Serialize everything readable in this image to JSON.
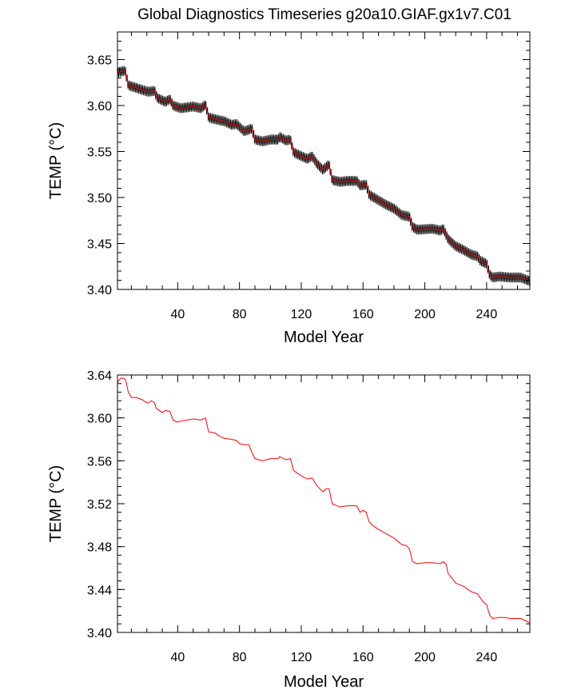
{
  "page_title": "Global Diagnostics Timeseries g20a10.GIAF.gx1v7.C01",
  "colors": {
    "monthly": "#000000",
    "annual": "#ff0000",
    "axis": "#000000",
    "background": "#ffffff"
  },
  "chart_data": [
    {
      "type": "line",
      "panel": "top",
      "title": "Global Diagnostics Timeseries g20a10.GIAF.gx1v7.C01",
      "xlabel": "Model Year",
      "ylabel": "TEMP (°C)",
      "xlim": [
        1,
        268
      ],
      "ylim": [
        3.4,
        3.68
      ],
      "xticks": [
        40,
        80,
        120,
        160,
        200,
        240
      ],
      "xtick_labels": [
        "40",
        "80",
        "120",
        "160",
        "200",
        "240"
      ],
      "yticks": [
        3.4,
        3.45,
        3.5,
        3.55,
        3.6,
        3.65
      ],
      "ytick_labels": [
        "3.40",
        "3.45",
        "3.50",
        "3.55",
        "3.60",
        "3.65"
      ],
      "series": [
        {
          "name": "monthly",
          "color": "#000000",
          "seasonal_amplitude": 0.006
        },
        {
          "name": "annual",
          "color": "#ff0000"
        }
      ],
      "x": [
        1,
        6,
        7,
        8,
        17,
        21,
        25,
        26,
        27,
        32,
        35,
        37,
        42,
        50,
        55,
        58,
        60,
        67,
        70,
        75,
        78,
        83,
        88,
        90,
        95,
        100,
        105,
        106,
        110,
        113,
        115,
        120,
        124,
        127,
        130,
        134,
        138,
        140,
        145,
        150,
        156,
        158,
        162,
        164,
        170,
        175,
        180,
        185,
        190,
        192,
        195,
        205,
        210,
        212,
        215,
        220,
        225,
        230,
        234,
        236,
        240,
        242,
        244,
        248,
        255,
        262,
        268
      ],
      "y": [
        3.636,
        3.638,
        3.63,
        3.622,
        3.617,
        3.615,
        3.616,
        3.611,
        3.608,
        3.604,
        3.607,
        3.6,
        3.597,
        3.599,
        3.597,
        3.601,
        3.587,
        3.584,
        3.583,
        3.579,
        3.58,
        3.572,
        3.575,
        3.563,
        3.561,
        3.563,
        3.563,
        3.566,
        3.562,
        3.563,
        3.549,
        3.545,
        3.542,
        3.545,
        3.537,
        3.53,
        3.536,
        3.519,
        3.517,
        3.518,
        3.518,
        3.513,
        3.514,
        3.503,
        3.497,
        3.492,
        3.488,
        3.481,
        3.479,
        3.468,
        3.465,
        3.466,
        3.464,
        3.466,
        3.455,
        3.447,
        3.443,
        3.438,
        3.436,
        3.431,
        3.428,
        3.416,
        3.413,
        3.414,
        3.413,
        3.413,
        3.409
      ]
    },
    {
      "type": "line",
      "panel": "bottom",
      "title": "",
      "xlabel": "Model Year",
      "ylabel": "TEMP (°C)",
      "xlim": [
        1,
        268
      ],
      "ylim": [
        3.4,
        3.64
      ],
      "xticks": [
        40,
        80,
        120,
        160,
        200,
        240
      ],
      "xtick_labels": [
        "40",
        "80",
        "120",
        "160",
        "200",
        "240"
      ],
      "yticks": [
        3.4,
        3.44,
        3.48,
        3.52,
        3.56,
        3.6,
        3.64
      ],
      "ytick_labels": [
        "3.40",
        "3.44",
        "3.48",
        "3.52",
        "3.56",
        "3.60",
        "3.64"
      ],
      "series": [
        {
          "name": "annual",
          "color": "#ff0000"
        }
      ],
      "x": [
        1,
        3,
        5,
        6,
        7,
        8,
        10,
        13,
        17,
        20,
        21,
        23,
        25,
        26,
        27,
        30,
        32,
        35,
        37,
        40,
        42,
        46,
        50,
        55,
        58,
        60,
        64,
        67,
        70,
        75,
        78,
        80,
        83,
        86,
        88,
        90,
        95,
        100,
        105,
        106,
        110,
        113,
        115,
        120,
        124,
        127,
        130,
        134,
        136,
        138,
        140,
        145,
        150,
        156,
        158,
        160,
        162,
        164,
        166,
        170,
        175,
        180,
        185,
        188,
        190,
        192,
        195,
        200,
        205,
        210,
        212,
        214,
        215,
        220,
        225,
        230,
        234,
        236,
        238,
        240,
        242,
        244,
        248,
        252,
        255,
        258,
        262,
        265,
        268
      ],
      "y": [
        3.633,
        3.637,
        3.637,
        3.636,
        3.631,
        3.624,
        3.619,
        3.619,
        3.617,
        3.614,
        3.614,
        3.616,
        3.614,
        3.609,
        3.608,
        3.605,
        3.607,
        3.606,
        3.598,
        3.596,
        3.597,
        3.598,
        3.599,
        3.598,
        3.6,
        3.587,
        3.586,
        3.583,
        3.581,
        3.58,
        3.579,
        3.576,
        3.575,
        3.575,
        3.568,
        3.562,
        3.56,
        3.562,
        3.562,
        3.564,
        3.561,
        3.562,
        3.551,
        3.546,
        3.543,
        3.544,
        3.537,
        3.531,
        3.534,
        3.534,
        3.52,
        3.517,
        3.518,
        3.518,
        3.512,
        3.514,
        3.512,
        3.503,
        3.5,
        3.496,
        3.492,
        3.488,
        3.482,
        3.481,
        3.478,
        3.466,
        3.464,
        3.465,
        3.465,
        3.464,
        3.466,
        3.463,
        3.455,
        3.446,
        3.443,
        3.438,
        3.436,
        3.432,
        3.428,
        3.426,
        3.416,
        3.413,
        3.414,
        3.414,
        3.413,
        3.413,
        3.413,
        3.411,
        3.409
      ]
    }
  ]
}
